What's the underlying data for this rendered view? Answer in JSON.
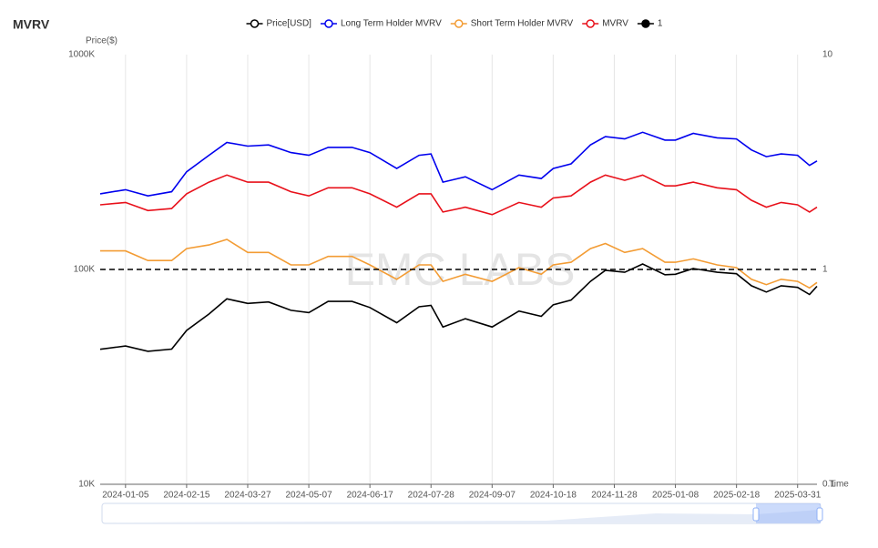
{
  "chart_data": {
    "type": "line",
    "title": "MVRV",
    "watermark": "EMC LABS",
    "y_label": "Price($)",
    "x_label": "Time",
    "yscale": "log",
    "y2scale": "log",
    "grid": "x",
    "x": [
      "2023-12-19",
      "2024-01-05",
      "2024-01-20",
      "2024-02-05",
      "2024-02-15",
      "2024-03-01",
      "2024-03-13",
      "2024-03-27",
      "2024-04-10",
      "2024-04-25",
      "2024-05-07",
      "2024-05-20",
      "2024-06-05",
      "2024-06-17",
      "2024-07-05",
      "2024-07-20",
      "2024-07-28",
      "2024-08-05",
      "2024-08-20",
      "2024-09-07",
      "2024-09-25",
      "2024-10-10",
      "2024-10-18",
      "2024-10-30",
      "2024-11-12",
      "2024-11-22",
      "2024-12-05",
      "2024-12-17",
      "2025-01-01",
      "2025-01-08",
      "2025-01-20",
      "2025-02-05",
      "2025-02-18",
      "2025-02-28",
      "2025-03-10",
      "2025-03-20",
      "2025-03-31",
      "2025-04-08",
      "2025-04-13"
    ],
    "xlim": [
      "2023-12-19",
      "2025-04-13"
    ],
    "xticks": [
      "2024-01-05",
      "2024-02-15",
      "2024-03-27",
      "2024-05-07",
      "2024-06-17",
      "2024-07-28",
      "2024-09-07",
      "2024-10-18",
      "2024-11-28",
      "2025-01-08",
      "2025-02-18",
      "2025-03-31"
    ],
    "ylim": [
      10000,
      1000000
    ],
    "yticks": [
      {
        "value": 10000,
        "label": "10K"
      },
      {
        "value": 100000,
        "label": "100K"
      },
      {
        "value": 1000000,
        "label": "1000K"
      }
    ],
    "y2lim": [
      0.1,
      10
    ],
    "y2ticks": [
      {
        "value": 0.1,
        "label": "0.1"
      },
      1,
      10
    ],
    "series": [
      {
        "name": "Price[USD]",
        "color": "#000000",
        "values": [
          42500,
          44000,
          41600,
          42600,
          52000,
          62000,
          73000,
          69500,
          70600,
          64500,
          63000,
          71000,
          71000,
          66500,
          56500,
          67000,
          68000,
          54000,
          59000,
          54000,
          64000,
          60500,
          68500,
          72000,
          88000,
          99000,
          97000,
          106000,
          94500,
          95000,
          101000,
          97000,
          95500,
          84000,
          78500,
          84000,
          82500,
          76500,
          83500
        ]
      },
      {
        "name": "Long Term Holder MVRV",
        "color": "#0000ee",
        "axis": "y2",
        "values": [
          2.25,
          2.35,
          2.2,
          2.3,
          2.85,
          3.4,
          3.9,
          3.75,
          3.8,
          3.5,
          3.4,
          3.7,
          3.7,
          3.5,
          2.95,
          3.4,
          3.45,
          2.55,
          2.7,
          2.35,
          2.75,
          2.65,
          2.95,
          3.1,
          3.8,
          4.15,
          4.05,
          4.35,
          4.0,
          4.0,
          4.3,
          4.1,
          4.05,
          3.6,
          3.35,
          3.45,
          3.4,
          3.05,
          3.2
        ]
      },
      {
        "name": "Short Term Holder MVRV",
        "color": "#f39c34",
        "axis": "y2",
        "values": [
          1.22,
          1.22,
          1.1,
          1.1,
          1.25,
          1.3,
          1.38,
          1.2,
          1.2,
          1.05,
          1.05,
          1.15,
          1.15,
          1.05,
          0.9,
          1.05,
          1.05,
          0.88,
          0.95,
          0.88,
          1.02,
          0.95,
          1.05,
          1.08,
          1.25,
          1.32,
          1.2,
          1.25,
          1.08,
          1.08,
          1.12,
          1.05,
          1.02,
          0.9,
          0.85,
          0.9,
          0.88,
          0.82,
          0.87
        ]
      },
      {
        "name": "MVRV",
        "color": "#e8101a",
        "axis": "y2",
        "values": [
          2.0,
          2.05,
          1.88,
          1.92,
          2.25,
          2.55,
          2.75,
          2.55,
          2.55,
          2.3,
          2.2,
          2.4,
          2.4,
          2.25,
          1.95,
          2.25,
          2.25,
          1.85,
          1.95,
          1.8,
          2.05,
          1.95,
          2.15,
          2.2,
          2.55,
          2.75,
          2.6,
          2.75,
          2.45,
          2.45,
          2.55,
          2.4,
          2.35,
          2.1,
          1.95,
          2.05,
          2.0,
          1.85,
          1.95
        ]
      },
      {
        "name": "1",
        "color": "#000000",
        "axis": "y2",
        "dashed": true,
        "values": [
          1,
          1,
          1,
          1,
          1,
          1,
          1,
          1,
          1,
          1,
          1,
          1,
          1,
          1,
          1,
          1,
          1,
          1,
          1,
          1,
          1,
          1,
          1,
          1,
          1,
          1,
          1,
          1,
          1,
          1,
          1,
          1,
          1,
          1,
          1,
          1,
          1,
          1,
          1
        ]
      }
    ]
  }
}
